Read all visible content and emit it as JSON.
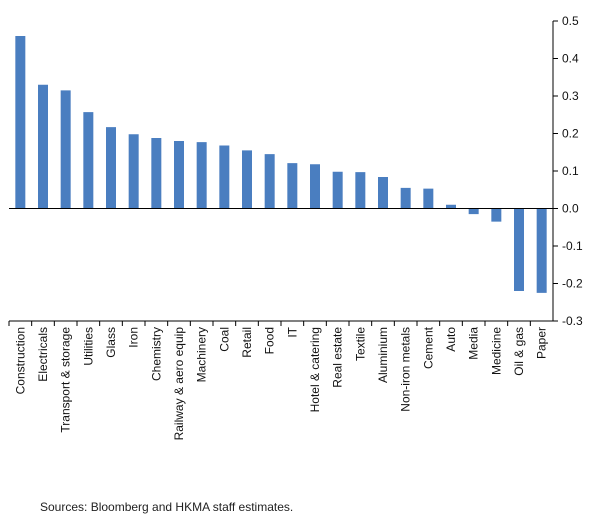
{
  "chart_data": {
    "type": "bar",
    "title": "",
    "xlabel": "",
    "ylabel": "",
    "categories": [
      "Construction",
      "Electricals",
      "Transport & storage",
      "Utilities",
      "Glass",
      "Iron",
      "Chemistry",
      "Railway & aero equip",
      "Machinery",
      "Coal",
      "Retail",
      "Food",
      "IT",
      "Hotel & catering",
      "Real estate",
      "Textile",
      "Aluminium",
      "Non-iron metals",
      "Cement",
      "Auto",
      "Media",
      "Medicine",
      "Oil & gas",
      "Paper"
    ],
    "values": [
      0.46,
      0.33,
      0.315,
      0.257,
      0.217,
      0.198,
      0.188,
      0.18,
      0.177,
      0.168,
      0.155,
      0.145,
      0.121,
      0.118,
      0.098,
      0.097,
      0.084,
      0.055,
      0.053,
      0.01,
      -0.015,
      -0.035,
      -0.22,
      -0.225
    ],
    "ylim": [
      -0.3,
      0.5
    ],
    "yticks": [
      -0.3,
      -0.2,
      -0.1,
      0.0,
      0.1,
      0.2,
      0.3,
      0.4,
      0.5
    ],
    "ytick_labels": [
      "-0.3",
      "-0.2",
      "-0.1",
      "0.0",
      "0.1",
      "0.2",
      "0.3",
      "0.4",
      "0.5"
    ],
    "y_axis_side": "right",
    "grid": false,
    "bar_color": "#4a7ec0"
  },
  "source_note": "Sources: Bloomberg and HKMA staff estimates."
}
